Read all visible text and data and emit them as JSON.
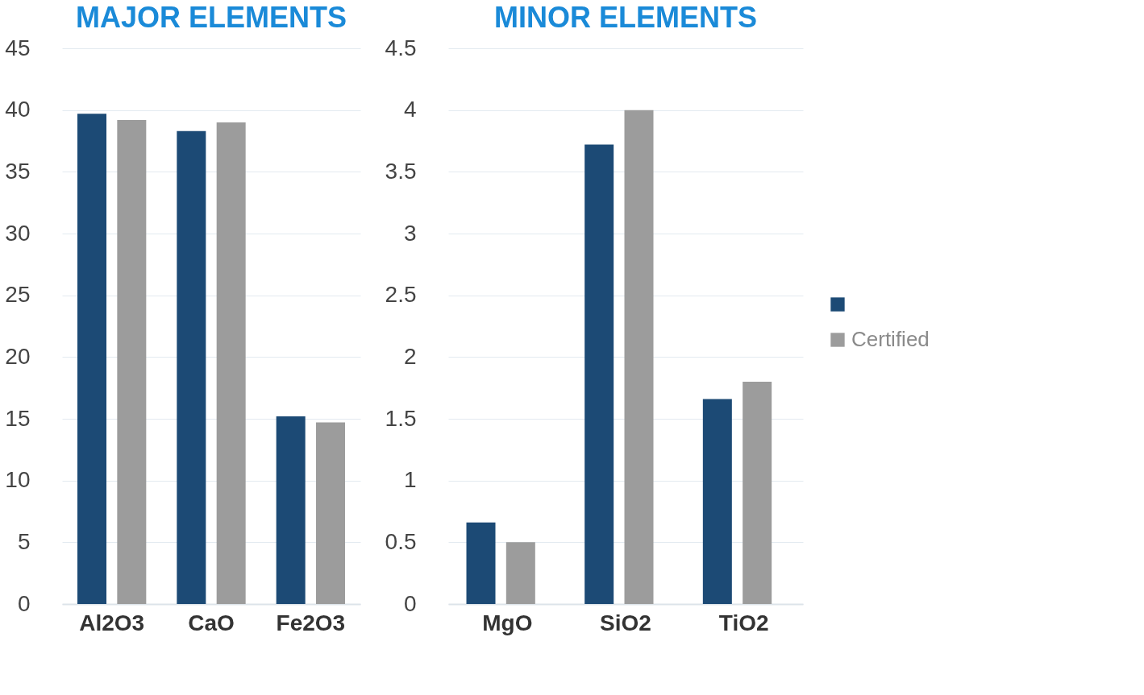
{
  "chart_data": [
    {
      "type": "bar",
      "title": "MAJOR ELEMENTS",
      "categories": [
        "Al2O3",
        "CaO",
        "Fe2O3"
      ],
      "series": [
        {
          "color": "#1c4a75",
          "values": [
            39.7,
            38.3,
            15.2
          ]
        },
        {
          "color": "#9c9c9c",
          "values": [
            39.2,
            39.0,
            14.7
          ]
        }
      ],
      "ylim": [
        0,
        45
      ],
      "yticks": [
        0,
        5,
        10,
        15,
        20,
        25,
        30,
        35,
        40,
        45
      ],
      "grid": "y",
      "legend": false
    },
    {
      "type": "bar",
      "title": "MINOR ELEMENTS",
      "categories": [
        "MgO",
        "SiO2",
        "TiO2"
      ],
      "series": [
        {
          "color": "#1c4a75",
          "values": [
            0.66,
            3.72,
            1.66
          ]
        },
        {
          "name": "Certified",
          "color": "#9c9c9c",
          "values": [
            0.5,
            4.0,
            1.8
          ]
        }
      ],
      "ylim": [
        0,
        4.5
      ],
      "yticks": [
        0,
        0.5,
        1,
        1.5,
        2,
        2.5,
        3,
        3.5,
        4,
        4.5
      ],
      "grid": "y",
      "legend": "right"
    }
  ]
}
